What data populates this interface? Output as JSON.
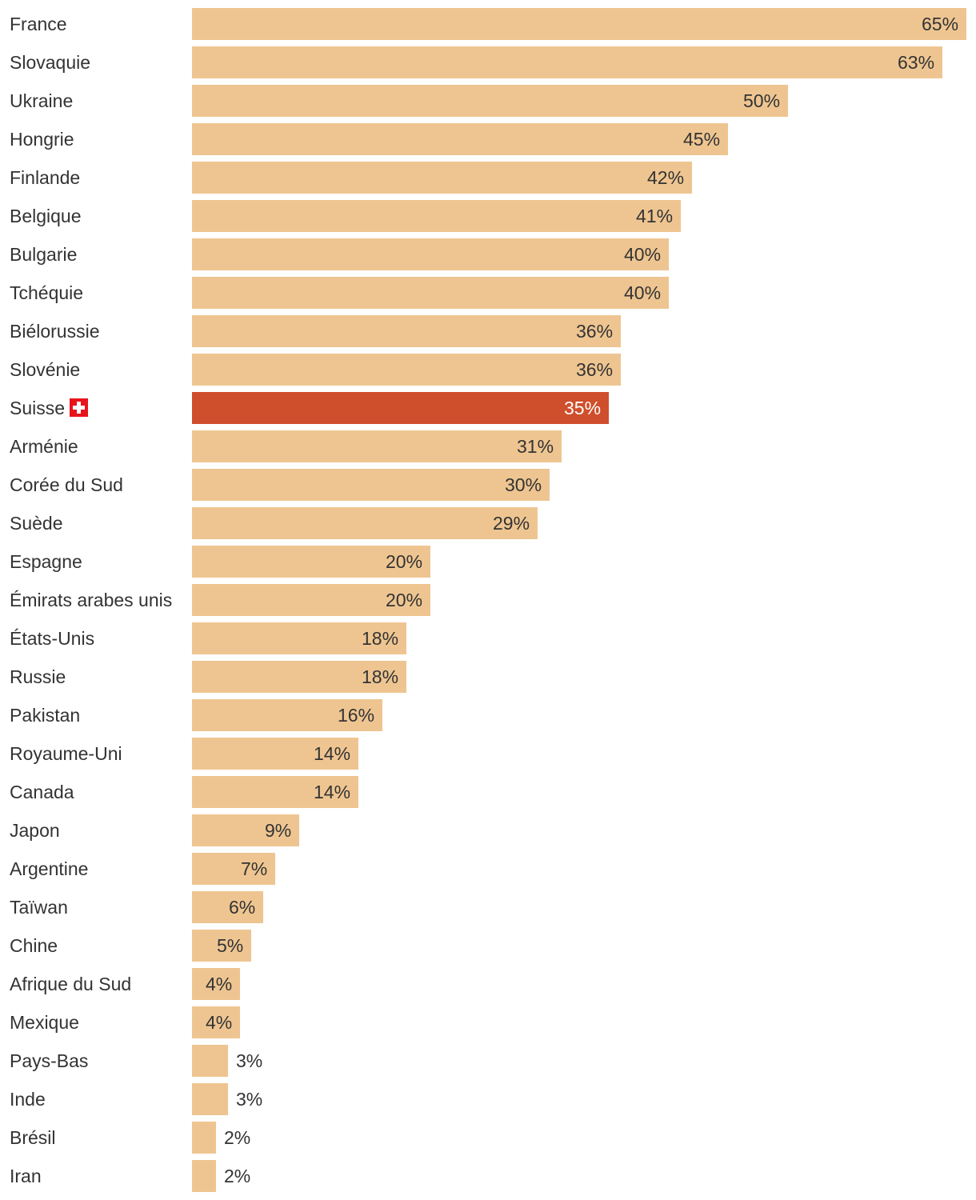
{
  "colors": {
    "bar": "#EEC591",
    "highlight": "#CF4E2B",
    "flag": "#E8141C",
    "text": "#333333",
    "highlight_text": "#FFFFFF"
  },
  "chart_data": {
    "type": "bar",
    "orientation": "horizontal",
    "value_suffix": "%",
    "xlim": [
      0,
      65
    ],
    "grid": false,
    "legend": "none",
    "highlight_category": "Suisse",
    "highlight_icon": "swiss-flag-icon",
    "categories": [
      "France",
      "Slovaquie",
      "Ukraine",
      "Hongrie",
      "Finlande",
      "Belgique",
      "Bulgarie",
      "Tchéquie",
      "Biélorussie",
      "Slovénie",
      "Suisse",
      "Arménie",
      "Corée du Sud",
      "Suède",
      "Espagne",
      "Émirats arabes unis",
      "États-Unis",
      "Russie",
      "Pakistan",
      "Royaume-Uni",
      "Canada",
      "Japon",
      "Argentine",
      "Taïwan",
      "Chine",
      "Afrique du Sud",
      "Mexique",
      "Pays-Bas",
      "Inde",
      "Brésil",
      "Iran"
    ],
    "values": [
      65,
      63,
      50,
      45,
      42,
      41,
      40,
      40,
      36,
      36,
      35,
      31,
      30,
      29,
      20,
      20,
      18,
      18,
      16,
      14,
      14,
      9,
      7,
      6,
      5,
      4,
      4,
      3,
      3,
      2,
      2
    ],
    "value_labels": [
      "65%",
      "63%",
      "50%",
      "45%",
      "42%",
      "41%",
      "40%",
      "40%",
      "36%",
      "36%",
      "35%",
      "31%",
      "30%",
      "29%",
      "20%",
      "20%",
      "18%",
      "18%",
      "16%",
      "14%",
      "14%",
      "9%",
      "7%",
      "6%",
      "5%",
      "4%",
      "4%",
      "3%",
      "3%",
      "2%",
      "2%"
    ]
  }
}
